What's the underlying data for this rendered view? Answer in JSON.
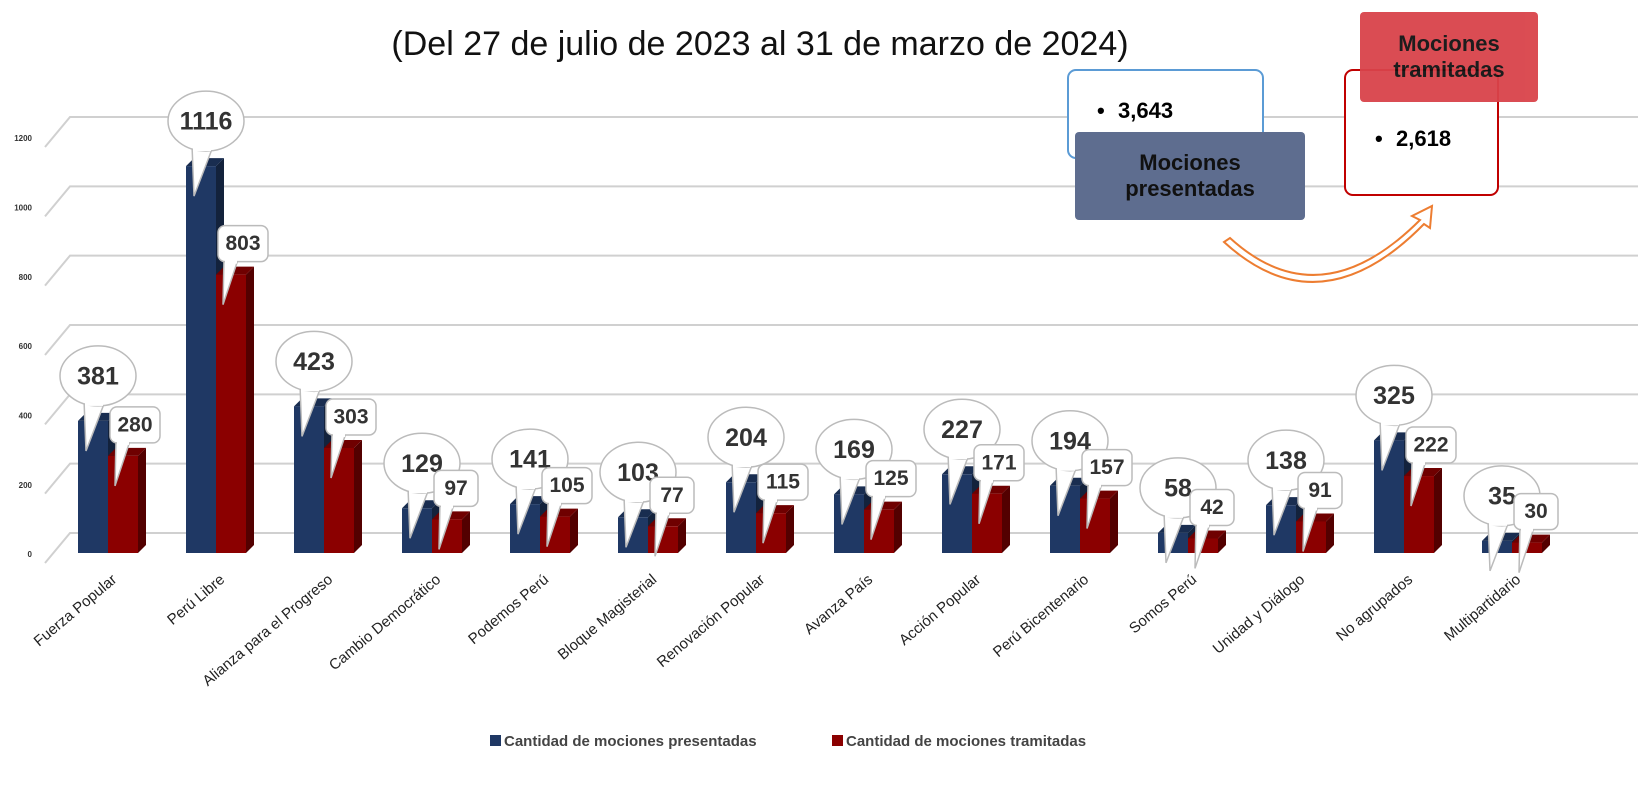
{
  "chart_data": {
    "type": "bar",
    "title": "(Del 27 de julio de 2023 al 31 de marzo de 2024)",
    "categories": [
      "Fuerza Popular",
      "Perú Libre",
      "Alianza para el Progreso",
      "Cambio Democrático",
      "Podemos Perú",
      "Bloque Magisterial",
      "Renovación Popular",
      "Avanza País",
      "Acción Popular",
      "Perú Bicentenario",
      "Somos Perú",
      "Unidad y Diálogo",
      "No agrupados",
      "Multipartidario"
    ],
    "series": [
      {
        "name": "Cantidad de mociones presentadas",
        "color": "#1f3864",
        "values": [
          381,
          1116,
          423,
          129,
          141,
          103,
          204,
          169,
          227,
          194,
          58,
          138,
          325,
          35
        ]
      },
      {
        "name": "Cantidad de mociones tramitadas",
        "color": "#8b0000",
        "values": [
          280,
          803,
          303,
          97,
          105,
          77,
          115,
          125,
          171,
          157,
          42,
          91,
          222,
          30
        ]
      }
    ],
    "ylim": [
      0,
      1200
    ],
    "yticks": [
      0,
      200,
      400,
      600,
      800,
      1000,
      1200
    ],
    "grid": true,
    "legend": "bottom",
    "annotations": {
      "presented_total": "3,643",
      "presented_label": "Mociones presentadas",
      "processed_total": "2,618",
      "processed_label": "Mociones tramitadas"
    }
  }
}
